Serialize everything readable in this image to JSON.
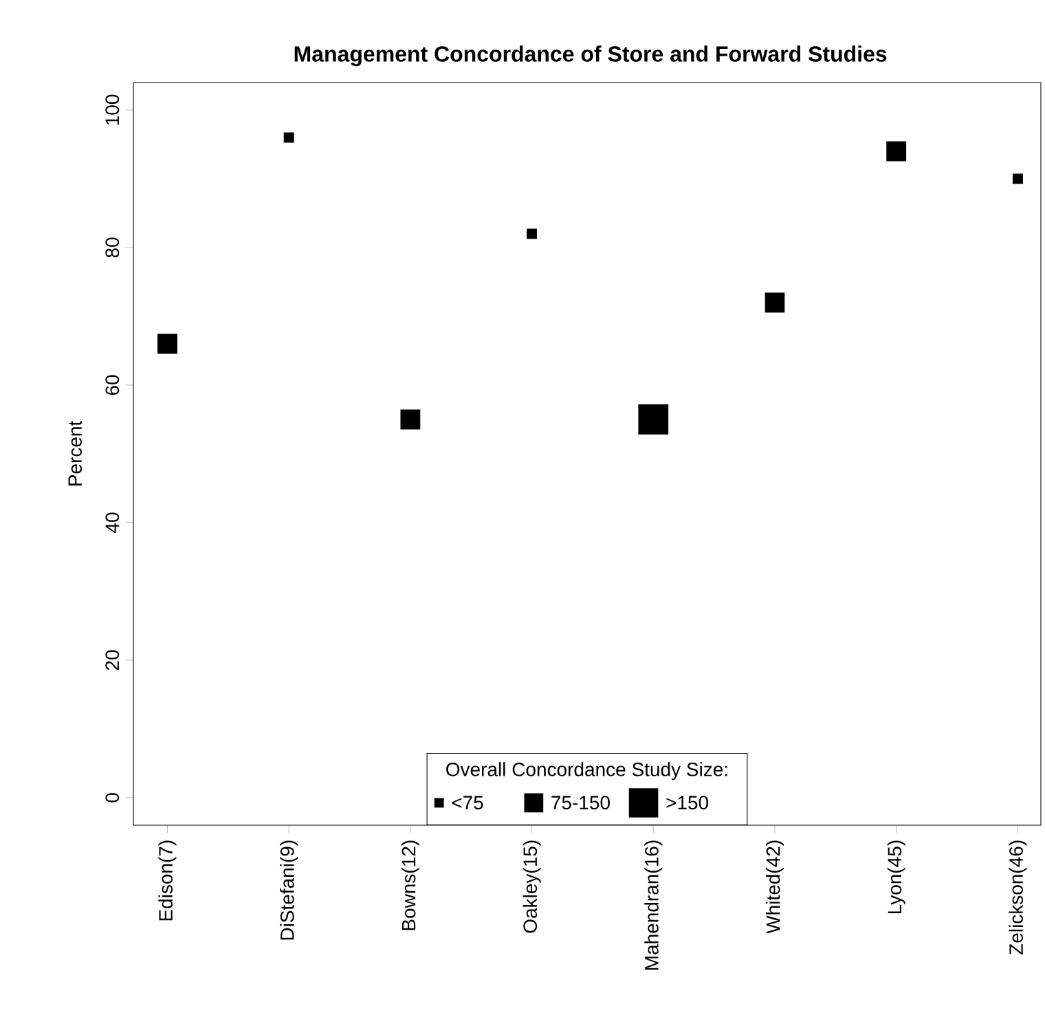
{
  "chart_data": {
    "type": "scatter",
    "title": "Management Concordance of Store and Forward Studies",
    "ylabel": "Percent",
    "categories": [
      "Edison(7)",
      "DiStefani(9)",
      "Bowns(12)",
      "Oakley(15)",
      "Mahendran(16)",
      "Whited(42)",
      "Lyon(45)",
      "Zelickson(46)"
    ],
    "series": [
      {
        "name": "<75",
        "color": "#000000",
        "values": [
          null,
          96,
          null,
          82,
          null,
          null,
          null,
          90
        ]
      },
      {
        "name": "75-150",
        "color": "#000000",
        "values": [
          66,
          null,
          55,
          null,
          null,
          72,
          94,
          null
        ]
      },
      {
        "name": ">150",
        "color": "#000000",
        "values": [
          null,
          null,
          null,
          null,
          55,
          null,
          null,
          null
        ]
      }
    ],
    "legend_title": "Overall Concordance Study Size:",
    "legend": "bottom",
    "marker": "square",
    "ylim": [
      -4,
      104
    ],
    "yticks": [
      0,
      20,
      40,
      60,
      80,
      100
    ],
    "grid": false
  }
}
